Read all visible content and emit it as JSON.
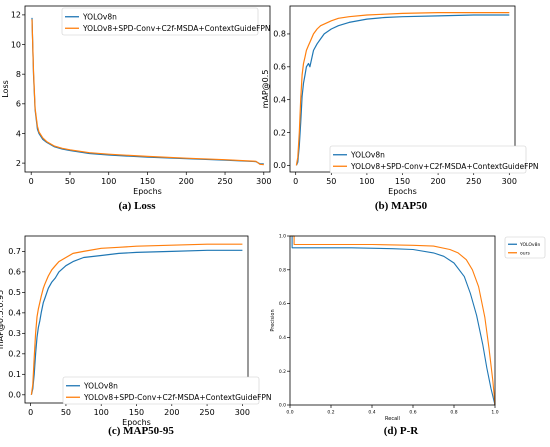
{
  "colors": {
    "baseline": "#1f77b4",
    "proposed": "#ff7f0e"
  },
  "captions": [
    "(a) Loss",
    "(b) MAP50",
    "(c) MAP50-95",
    "(d) P-R"
  ],
  "chart_data": [
    {
      "type": "line",
      "xlabel": "Epochs",
      "ylabel": "Loss",
      "xlim": [
        -8,
        308
      ],
      "ylim": [
        1.4,
        12.6
      ],
      "xticks": [
        0,
        50,
        100,
        150,
        200,
        250,
        300
      ],
      "yticks": [
        2,
        4,
        6,
        8,
        10,
        12
      ],
      "legend_position": "upper right",
      "series": [
        {
          "name": "YOLOv8n",
          "x": [
            1,
            3,
            5,
            8,
            10,
            15,
            20,
            30,
            40,
            50,
            75,
            100,
            150,
            200,
            250,
            290,
            295,
            300
          ],
          "y": [
            11.8,
            8.0,
            5.6,
            4.3,
            4.0,
            3.6,
            3.4,
            3.1,
            2.95,
            2.85,
            2.65,
            2.55,
            2.4,
            2.3,
            2.2,
            2.1,
            1.95,
            1.95
          ]
        },
        {
          "name": "YOLOv8+SPD-Conv+C2f-MSDA+ContextGuideFPN",
          "x": [
            1,
            3,
            5,
            8,
            10,
            15,
            20,
            30,
            40,
            50,
            75,
            100,
            150,
            200,
            250,
            290,
            295,
            300
          ],
          "y": [
            11.7,
            8.2,
            5.7,
            4.5,
            4.1,
            3.7,
            3.45,
            3.15,
            3.0,
            2.9,
            2.7,
            2.6,
            2.45,
            2.33,
            2.23,
            2.12,
            1.92,
            1.9
          ]
        }
      ]
    },
    {
      "type": "line",
      "xlabel": "Epochs",
      "ylabel": "mAP@0.5",
      "xlim": [
        -8,
        308
      ],
      "ylim": [
        -0.04,
        0.97
      ],
      "xticks": [
        0,
        50,
        100,
        150,
        200,
        250,
        300
      ],
      "yticks": [
        0.0,
        0.2,
        0.4,
        0.6,
        0.8
      ],
      "legend_position": "lower right",
      "series": [
        {
          "name": "YOLOv8n",
          "x": [
            1,
            3,
            5,
            7,
            9,
            11,
            13,
            15,
            18,
            20,
            25,
            30,
            35,
            40,
            50,
            60,
            75,
            100,
            125,
            150,
            200,
            250,
            300
          ],
          "y": [
            0.0,
            0.02,
            0.12,
            0.26,
            0.42,
            0.5,
            0.55,
            0.6,
            0.62,
            0.6,
            0.7,
            0.74,
            0.77,
            0.8,
            0.83,
            0.85,
            0.87,
            0.89,
            0.9,
            0.905,
            0.91,
            0.915,
            0.915
          ]
        },
        {
          "name": "YOLOv8+SPD-Conv+C2f-MSDA+ContextGuideFPN",
          "x": [
            1,
            3,
            5,
            7,
            9,
            11,
            13,
            15,
            18,
            20,
            25,
            30,
            35,
            40,
            50,
            60,
            75,
            100,
            125,
            150,
            200,
            250,
            300
          ],
          "y": [
            0.0,
            0.05,
            0.2,
            0.4,
            0.55,
            0.62,
            0.66,
            0.7,
            0.73,
            0.75,
            0.8,
            0.83,
            0.85,
            0.86,
            0.88,
            0.895,
            0.905,
            0.915,
            0.92,
            0.925,
            0.93,
            0.93,
            0.93
          ]
        }
      ]
    },
    {
      "type": "line",
      "xlabel": "Epochs",
      "ylabel": "mAP@0.5:0.95",
      "xlim": [
        -8,
        308
      ],
      "ylim": [
        -0.04,
        0.775
      ],
      "xticks": [
        0,
        50,
        100,
        150,
        200,
        250,
        300
      ],
      "yticks": [
        0.0,
        0.1,
        0.2,
        0.3,
        0.4,
        0.5,
        0.6,
        0.7
      ],
      "legend_position": "lower right",
      "series": [
        {
          "name": "YOLOv8n",
          "x": [
            1,
            3,
            5,
            7,
            9,
            11,
            13,
            15,
            18,
            20,
            25,
            30,
            35,
            40,
            50,
            60,
            75,
            100,
            125,
            150,
            200,
            250,
            300
          ],
          "y": [
            0.0,
            0.03,
            0.1,
            0.2,
            0.28,
            0.33,
            0.36,
            0.4,
            0.45,
            0.47,
            0.52,
            0.55,
            0.57,
            0.6,
            0.63,
            0.65,
            0.67,
            0.68,
            0.69,
            0.695,
            0.7,
            0.705,
            0.705
          ]
        },
        {
          "name": "YOLOv8+SPD-Conv+C2f-MSDA+ContextGuideFPN",
          "x": [
            1,
            3,
            5,
            7,
            9,
            11,
            13,
            15,
            18,
            20,
            25,
            30,
            35,
            40,
            50,
            60,
            75,
            100,
            125,
            150,
            200,
            250,
            300
          ],
          "y": [
            0.0,
            0.05,
            0.18,
            0.3,
            0.38,
            0.42,
            0.45,
            0.48,
            0.52,
            0.54,
            0.58,
            0.61,
            0.63,
            0.65,
            0.67,
            0.69,
            0.7,
            0.715,
            0.72,
            0.725,
            0.73,
            0.735,
            0.735
          ]
        }
      ]
    },
    {
      "type": "line",
      "xlabel": "Recall",
      "ylabel": "Precision",
      "xlim": [
        0,
        1
      ],
      "ylim": [
        0,
        1
      ],
      "xticks": [
        0.0,
        0.2,
        0.4,
        0.6,
        0.8,
        1.0
      ],
      "yticks": [
        0.0,
        0.2,
        0.4,
        0.6,
        0.8,
        1.0
      ],
      "legend_position": "upper right outside",
      "series": [
        {
          "name": "YOLOv8n",
          "x": [
            0,
            0.01,
            0.01,
            0.3,
            0.5,
            0.6,
            0.7,
            0.75,
            0.8,
            0.85,
            0.88,
            0.91,
            0.94,
            0.96,
            0.98,
            1.0
          ],
          "y": [
            1.0,
            1.0,
            0.93,
            0.93,
            0.925,
            0.92,
            0.9,
            0.88,
            0.84,
            0.76,
            0.66,
            0.53,
            0.36,
            0.22,
            0.1,
            0.0
          ]
        },
        {
          "name": "ours",
          "x": [
            0,
            0.02,
            0.02,
            0.4,
            0.6,
            0.7,
            0.78,
            0.82,
            0.86,
            0.89,
            0.92,
            0.95,
            0.97,
            0.99,
            1.0
          ],
          "y": [
            1.0,
            1.0,
            0.95,
            0.95,
            0.945,
            0.94,
            0.92,
            0.9,
            0.86,
            0.8,
            0.7,
            0.52,
            0.34,
            0.14,
            0.0
          ]
        }
      ]
    }
  ]
}
